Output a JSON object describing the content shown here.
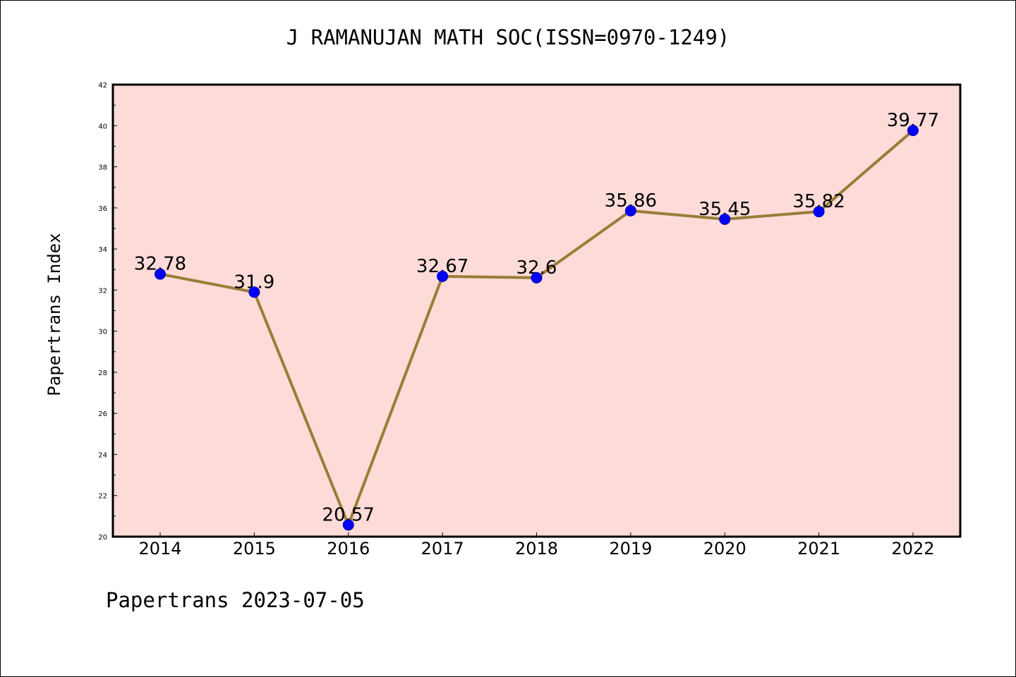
{
  "chart_title": "J RAMANUJAN MATH SOC(ISSN=0970-1249)",
  "footer_note": "Papertrans 2023-07-05",
  "colors": {
    "plot_background": "#fddbd8",
    "line": "#9a7d38",
    "marker": "#0000ff"
  },
  "chart_data": {
    "type": "line",
    "title": "J RAMANUJAN MATH SOC(ISSN=0970-1249)",
    "xlabel": "",
    "ylabel": "Papertrans Index",
    "categories": [
      "2014",
      "2015",
      "2016",
      "2017",
      "2018",
      "2019",
      "2020",
      "2021",
      "2022"
    ],
    "values": [
      32.78,
      31.9,
      20.57,
      32.67,
      32.6,
      35.86,
      35.45,
      35.82,
      39.77
    ],
    "value_labels": [
      "32.78",
      "31.9",
      "20.57",
      "32.67",
      "32.6",
      "35.86",
      "35.45",
      "35.82",
      "39.77"
    ],
    "ylim": [
      20,
      42
    ],
    "yticks": [
      "20",
      "22",
      "24",
      "26",
      "28",
      "30",
      "32",
      "34",
      "36",
      "38",
      "40",
      "42"
    ],
    "grid": false,
    "legend": "none"
  }
}
